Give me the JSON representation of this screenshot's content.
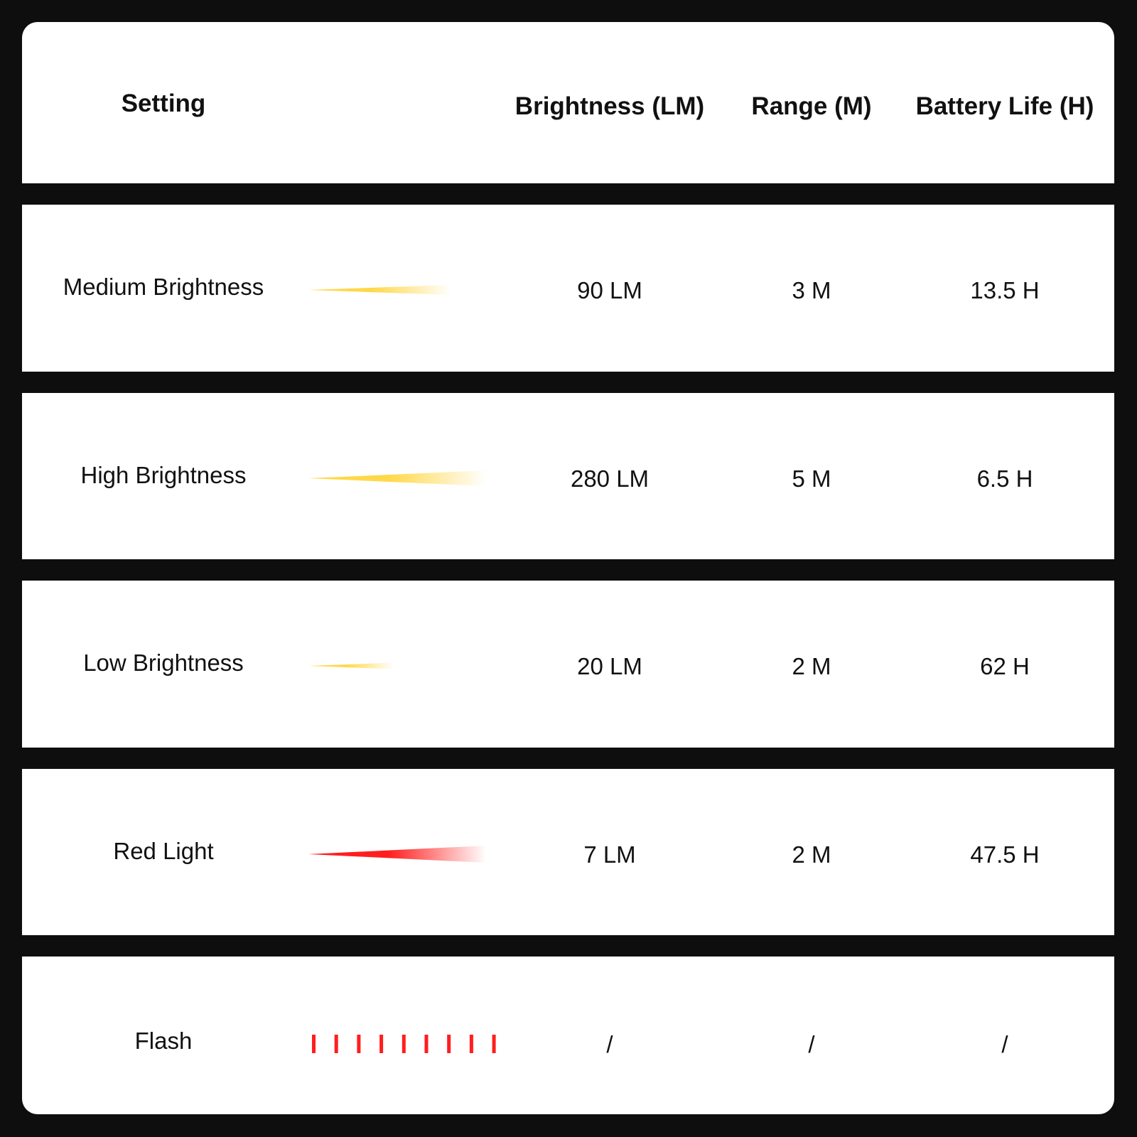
{
  "header": {
    "setting": "Setting",
    "brightness": "Brightness (LM)",
    "range": "Range (M)",
    "battery": "Battery Life (H)"
  },
  "rows": [
    {
      "setting": "Medium Brightness",
      "brightness": "90 LM",
      "range": "3 M",
      "battery": "13.5 H",
      "beam": "yellow-beam",
      "beam_color": "#ffd84a"
    },
    {
      "setting": "High Brightness",
      "brightness": "280 LM",
      "range": "5 M",
      "battery": "6.5 H",
      "beam": "yellow-beam",
      "beam_color": "#ffd84a"
    },
    {
      "setting": "Low Brightness",
      "brightness": "20 LM",
      "range": "2 M",
      "battery": "62 H",
      "beam": "yellow-beam",
      "beam_color": "#ffd84a"
    },
    {
      "setting": "Red Light",
      "brightness": "7 LM",
      "range": "2 M",
      "battery": "47.5 H",
      "beam": "red-beam",
      "beam_color": "#ff1e1e"
    },
    {
      "setting": "Flash",
      "brightness": "/",
      "range": "/",
      "battery": "/",
      "beam": "flash-bars",
      "beam_color": "#ff1e1e"
    }
  ]
}
